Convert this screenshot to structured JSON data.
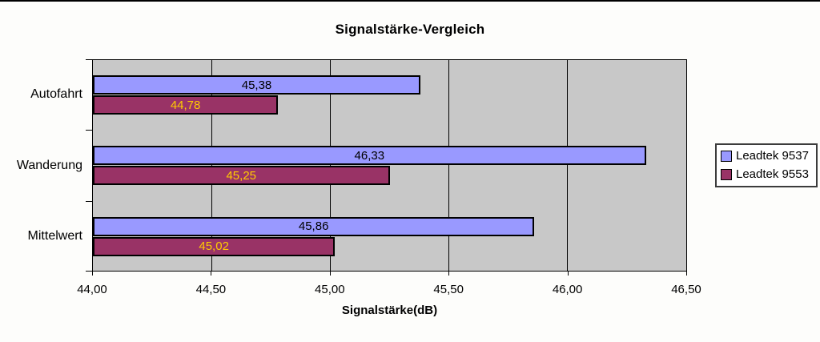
{
  "chart_data": {
    "type": "bar",
    "orientation": "horizontal",
    "title": "Signalstärke-Vergleich",
    "xlabel": "Signalstärke(dB)",
    "categories": [
      "Autofahrt",
      "Wanderung",
      "Mittelwert"
    ],
    "series": [
      {
        "name": "Leadtek 9537",
        "values": [
          45.38,
          46.33,
          45.86
        ],
        "value_labels": [
          "45,38",
          "46,33",
          "45,86"
        ],
        "color": "#9999FF",
        "label_color": "#000000"
      },
      {
        "name": "Leadtek 9553",
        "values": [
          44.78,
          45.25,
          45.02
        ],
        "value_labels": [
          "44,78",
          "45,25",
          "45,02"
        ],
        "color": "#993366",
        "label_color": "#FFCC00"
      }
    ],
    "xlim": [
      44.0,
      46.5
    ],
    "xticks": [
      44.0,
      44.5,
      45.0,
      45.5,
      46.0,
      46.5
    ],
    "xtick_labels": [
      "44,00",
      "44,50",
      "45,00",
      "45,50",
      "46,00",
      "46,50"
    ],
    "grid": true,
    "plot_bg_color": "#C8C8C8",
    "legend_position": "right"
  }
}
